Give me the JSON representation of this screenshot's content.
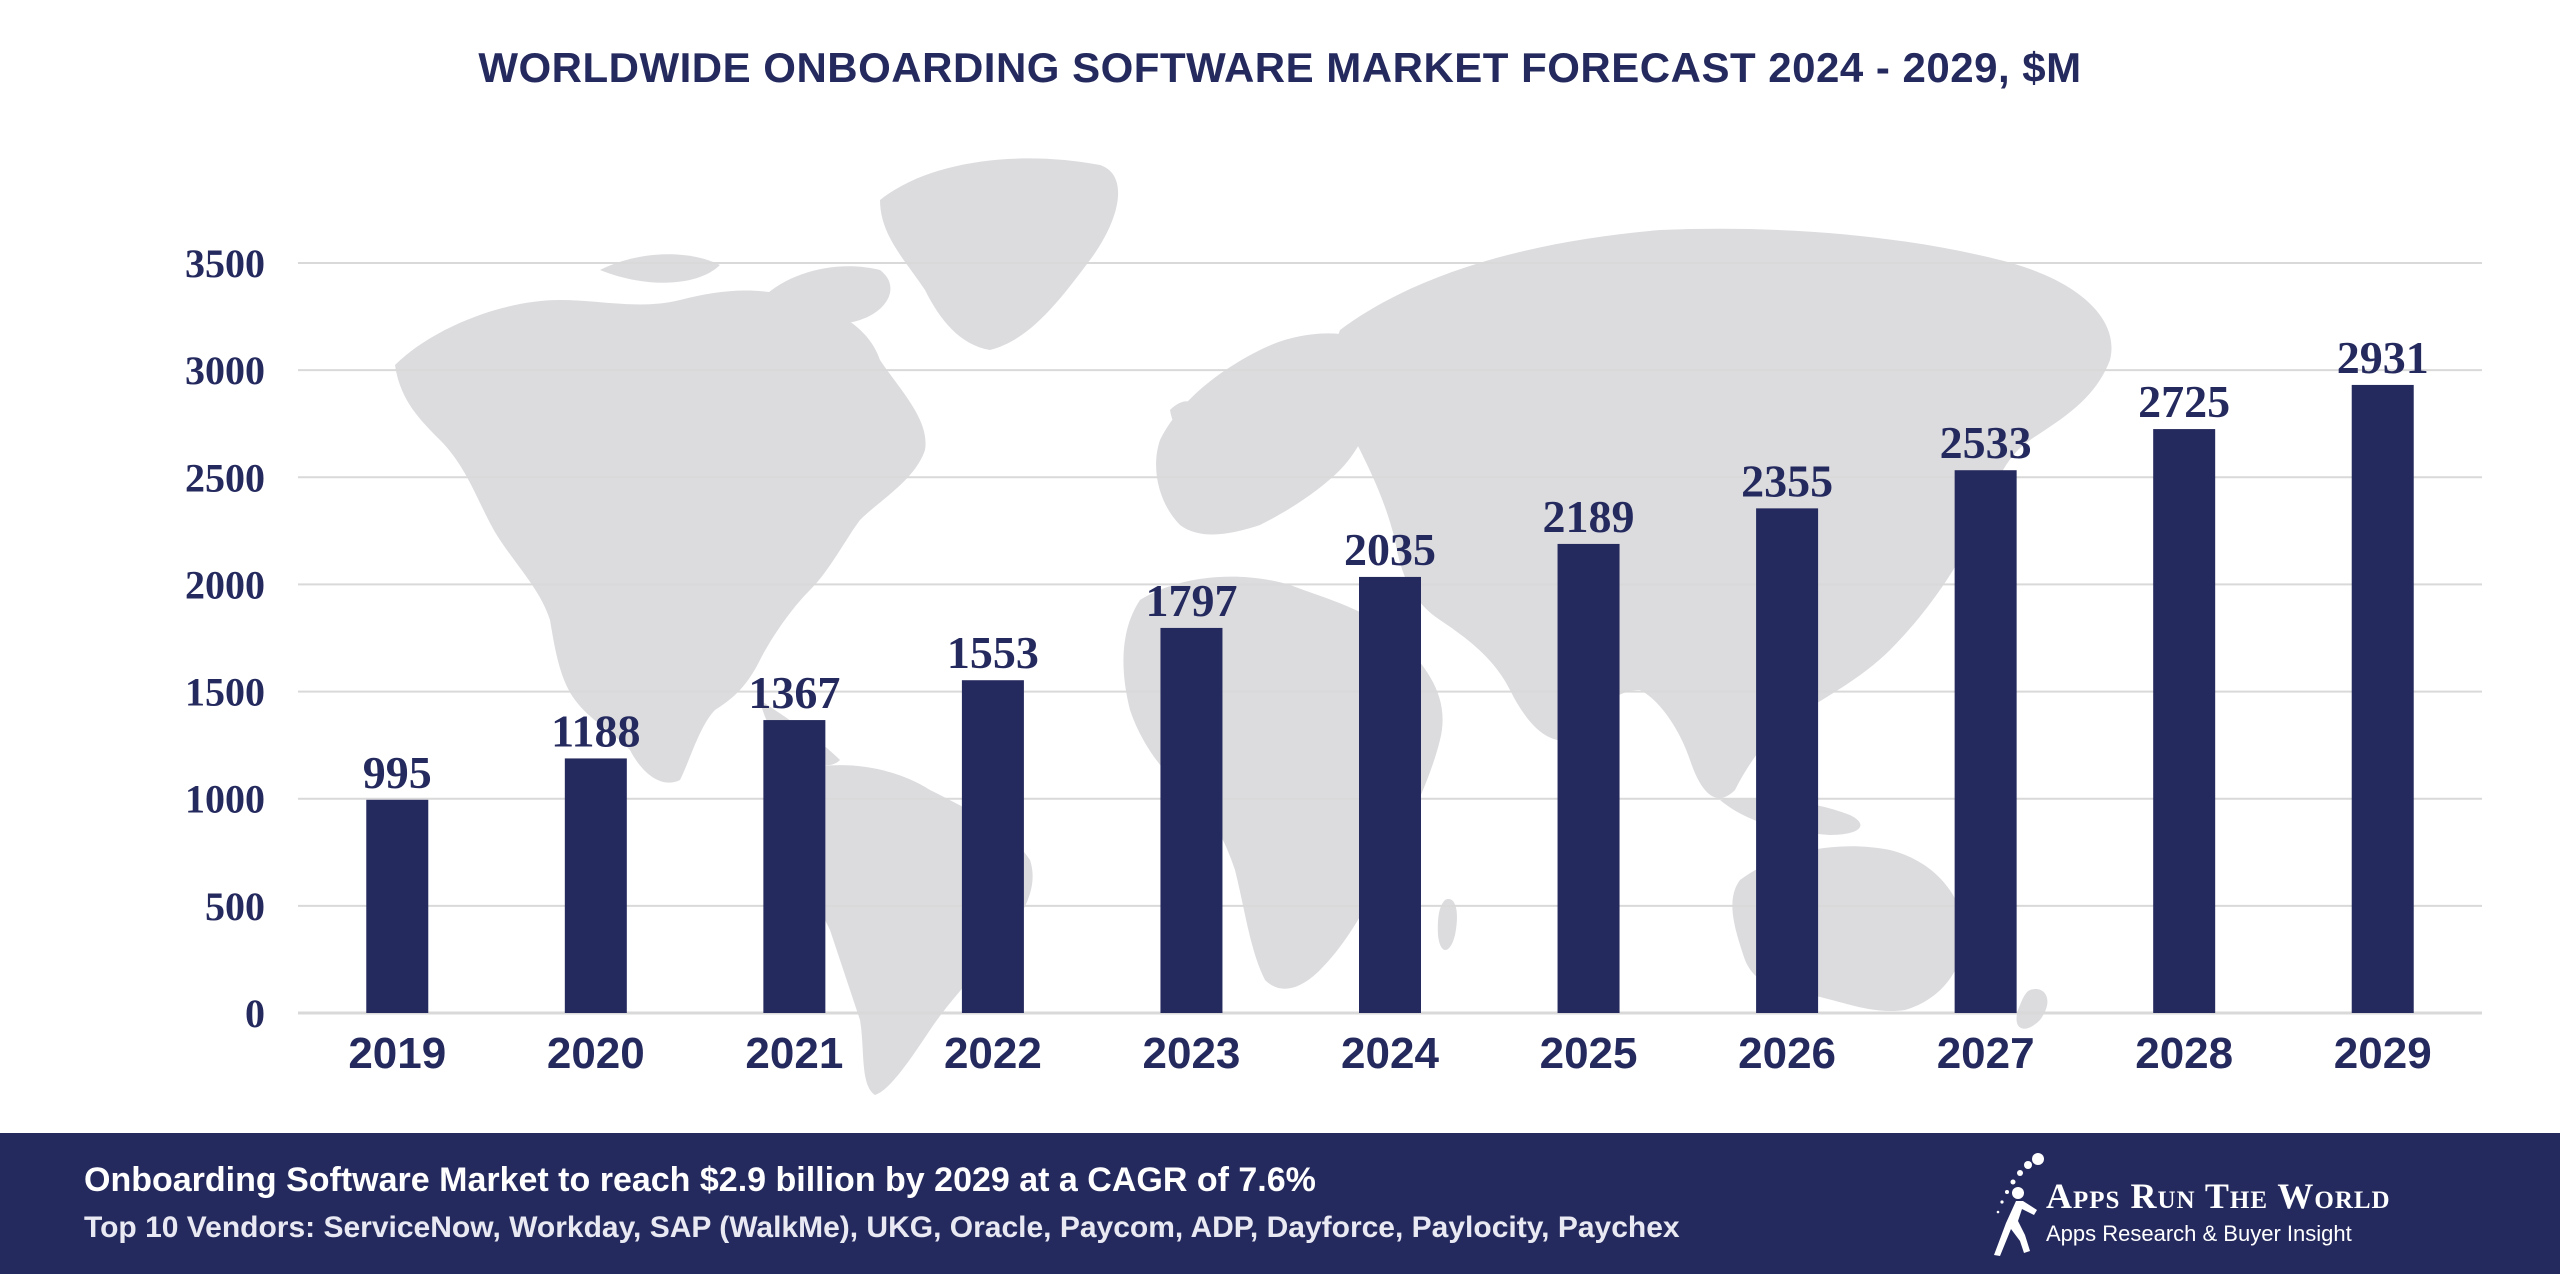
{
  "title": "WORLDWIDE ONBOARDING SOFTWARE MARKET FORECAST 2024 - 2029, $M",
  "chart_data": {
    "type": "bar",
    "title": "WORLDWIDE ONBOARDING SOFTWARE MARKET FORECAST 2024 - 2029, $M",
    "categories": [
      "2019",
      "2020",
      "2021",
      "2022",
      "2023",
      "2024",
      "2025",
      "2026",
      "2027",
      "2028",
      "2029"
    ],
    "values": [
      995,
      1188,
      1367,
      1553,
      1797,
      2035,
      2189,
      2355,
      2533,
      2725,
      2931
    ],
    "ylim": [
      0,
      3500
    ],
    "yticks": [
      0,
      500,
      1000,
      1500,
      2000,
      2500,
      3000,
      3500
    ],
    "xlabel": "",
    "ylabel": "",
    "grid": true,
    "data_labels": true,
    "legend": "none",
    "background": "world map",
    "bar_color": "#252a5e"
  },
  "footer": {
    "headline": "Onboarding Software Market to reach $2.9 billion by 2029 at a CAGR of 7.6%",
    "vendors": "Top 10 Vendors: ServiceNow, Workday, SAP (WalkMe), UKG, Oracle, Paycom, ADP, Dayforce, Paylocity, Paychex"
  },
  "logo": {
    "name": "Apps Run The World",
    "tagline": "Apps Research & Buyer Insight"
  },
  "colors": {
    "brand": "#252a5e",
    "map": "#dcdcdf",
    "grid": "#d9d9d9",
    "background": "#ffffff"
  }
}
